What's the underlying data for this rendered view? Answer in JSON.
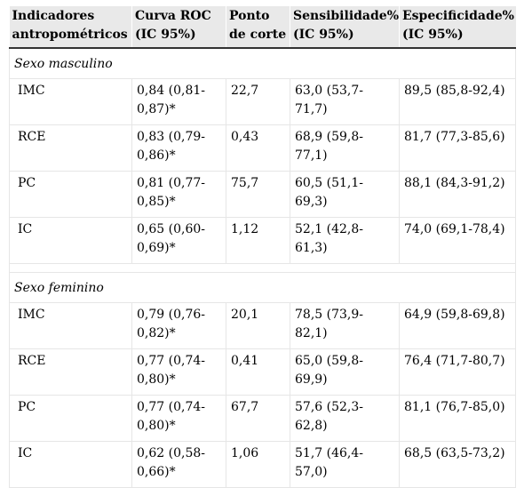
{
  "headers": [
    "Indicadores antropométricos",
    "Curva ROC (IC 95%)",
    "Ponto de corte",
    "Sensibilidade% (IC 95%)",
    "Especificidade% (IC 95%)"
  ],
  "sections": [
    {
      "title": "Sexo masculino",
      "rows": [
        [
          "IMC",
          "0,84 (0,81-0,87)*",
          "22,7",
          "63,0 (53,7-71,7)",
          "89,5 (85,8-92,4)"
        ],
        [
          "RCE",
          "0,83 (0,79-0,86)*",
          "0,43",
          "68,9 (59,8-77,1)",
          "81,7 (77,3-85,6)"
        ],
        [
          "PC",
          "0,81 (0,77-0,85)*",
          "75,7",
          "60,5 (51,1-69,3)",
          "88,1 (84,3-91,2)"
        ],
        [
          "IC",
          "0,65 (0,60-0,69)*",
          "1,12",
          "52,1 (42,8-61,3)",
          "74,0 (69,1-78,4)"
        ]
      ]
    },
    {
      "title": "Sexo feminino",
      "rows": [
        [
          "IMC",
          "0,79 (0,76-0,82)*",
          "20,1",
          "78,5 (73,9-82,1)",
          "64,9 (59,8-69,8)"
        ],
        [
          "RCE",
          "0,77 (0,74-0,80)*",
          "0,41",
          "65,0 (59,8-69,9)",
          "76,4 (71,7-80,7)"
        ],
        [
          "PC",
          "0,77 (0,74-0,80)*",
          "67,7",
          "57,6 (52,3-62,8)",
          "81,1 (76,7-85,0)"
        ],
        [
          "IC",
          "0,62 (0,58-0,66)*",
          "1,06",
          "51,7 (46,4-57,0)",
          "68,5 (63,5-73,2)"
        ]
      ]
    }
  ]
}
